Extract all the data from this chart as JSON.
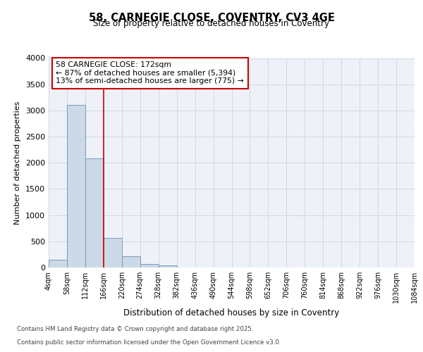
{
  "title_line1": "58, CARNEGIE CLOSE, COVENTRY, CV3 4GE",
  "title_line2": "Size of property relative to detached houses in Coventry",
  "xlabel": "Distribution of detached houses by size in Coventry",
  "ylabel": "Number of detached properties",
  "annotation_line1": "58 CARNEGIE CLOSE: 172sqm",
  "annotation_line2": "← 87% of detached houses are smaller (5,394)",
  "annotation_line3": "13% of semi-detached houses are larger (775) →",
  "property_size_bin": 166,
  "bar_color": "#ccd9e8",
  "bar_edge_color": "#7799bb",
  "vline_color": "#cc0000",
  "grid_color": "#ccd8e4",
  "bg_color": "#eef2f8",
  "footer_line1": "Contains HM Land Registry data © Crown copyright and database right 2025.",
  "footer_line2": "Contains public sector information licensed under the Open Government Licence v3.0.",
  "bins": [
    4,
    58,
    112,
    166,
    220,
    274,
    328,
    382,
    436,
    490,
    544,
    598,
    652,
    706,
    760,
    814,
    868,
    922,
    976,
    1030,
    1084
  ],
  "bin_labels": [
    "4sqm",
    "58sqm",
    "112sqm",
    "166sqm",
    "220sqm",
    "274sqm",
    "328sqm",
    "382sqm",
    "436sqm",
    "490sqm",
    "544sqm",
    "598sqm",
    "652sqm",
    "706sqm",
    "760sqm",
    "814sqm",
    "868sqm",
    "922sqm",
    "976sqm",
    "1030sqm",
    "1084sqm"
  ],
  "counts": [
    150,
    3100,
    2080,
    570,
    210,
    70,
    40,
    0,
    0,
    0,
    0,
    0,
    0,
    0,
    0,
    0,
    0,
    0,
    0,
    0
  ],
  "ylim": [
    0,
    4000
  ],
  "yticks": [
    0,
    500,
    1000,
    1500,
    2000,
    2500,
    3000,
    3500,
    4000
  ]
}
